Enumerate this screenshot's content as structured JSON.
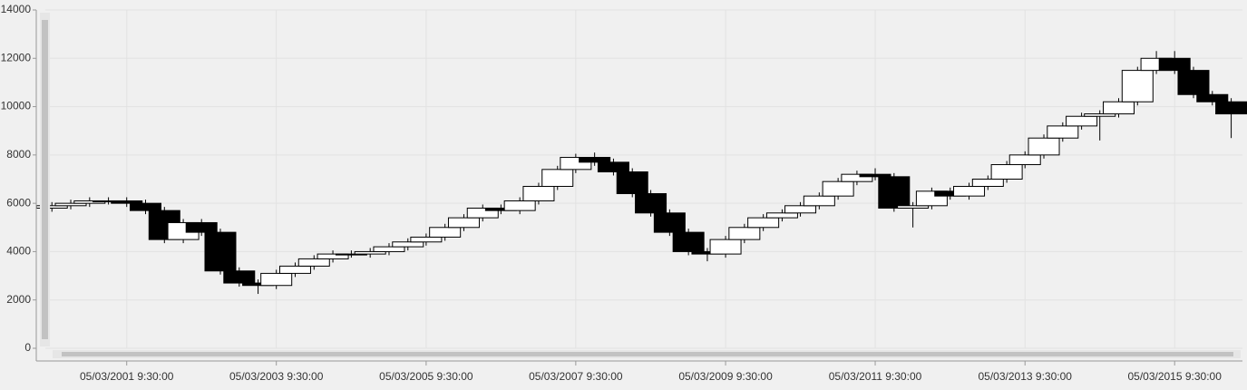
{
  "chart_data": {
    "type": "candlestick",
    "x": [
      "05/03/2000 9:30:00",
      "08/03/2000 9:30:00",
      "11/03/2000 9:30:00",
      "02/03/2001 9:30:00",
      "05/03/2001 9:30:00",
      "08/03/2001 9:30:00",
      "11/03/2001 9:30:00",
      "02/03/2002 9:30:00",
      "05/03/2002 9:30:00",
      "08/03/2002 9:30:00",
      "11/03/2002 9:30:00",
      "02/03/2003 9:30:00",
      "05/03/2003 9:30:00",
      "08/03/2003 9:30:00",
      "11/03/2003 9:30:00",
      "02/03/2004 9:30:00",
      "05/03/2004 9:30:00",
      "08/03/2004 9:30:00",
      "11/03/2004 9:30:00",
      "02/03/2005 9:30:00",
      "05/03/2005 9:30:00",
      "08/03/2005 9:30:00",
      "11/03/2005 9:30:00",
      "02/03/2006 9:30:00",
      "05/03/2006 9:30:00",
      "08/03/2006 9:30:00",
      "11/03/2006 9:30:00",
      "02/03/2007 9:30:00",
      "05/03/2007 9:30:00",
      "08/03/2007 9:30:00",
      "11/03/2007 9:30:00",
      "02/03/2008 9:30:00",
      "05/03/2008 9:30:00",
      "08/03/2008 9:30:00",
      "11/03/2008 9:30:00",
      "02/03/2009 9:30:00",
      "05/03/2009 9:30:00",
      "08/03/2009 9:30:00",
      "11/03/2009 9:30:00",
      "02/03/2010 9:30:00",
      "05/03/2010 9:30:00",
      "08/03/2010 9:30:00",
      "11/03/2010 9:30:00",
      "02/03/2011 9:30:00",
      "05/03/2011 9:30:00",
      "08/03/2011 9:30:00",
      "11/03/2011 9:30:00",
      "02/03/2012 9:30:00",
      "05/03/2012 9:30:00",
      "08/03/2012 9:30:00",
      "11/03/2012 9:30:00",
      "02/03/2013 9:30:00",
      "05/03/2013 9:30:00",
      "08/03/2013 9:30:00",
      "11/03/2013 9:30:00",
      "02/03/2014 9:30:00",
      "05/03/2014 9:30:00",
      "08/03/2014 9:30:00",
      "11/03/2014 9:30:00",
      "02/03/2015 9:30:00",
      "05/03/2015 9:30:00",
      "08/03/2015 9:30:00",
      "11/03/2015 9:30:00",
      "02/03/2016 9:30:00"
    ],
    "open": [
      5800,
      5900,
      6000,
      6100,
      6100,
      6000,
      5700,
      4500,
      5200,
      4800,
      3200,
      2700,
      2600,
      3100,
      3400,
      3700,
      3900,
      3900,
      4000,
      4200,
      4400,
      4600,
      5000,
      5400,
      5800,
      5700,
      6100,
      6700,
      7400,
      7900,
      7700,
      7300,
      6400,
      5600,
      4800,
      4000,
      3900,
      4500,
      5000,
      5400,
      5600,
      5900,
      6300,
      6900,
      7200,
      7100,
      5800,
      5900,
      6500,
      6300,
      6700,
      7000,
      7600,
      8000,
      8700,
      9200,
      9600,
      9700,
      10200,
      11500,
      12000,
      11500,
      10500,
      10200
    ],
    "high": [
      6050,
      6150,
      6250,
      6250,
      6250,
      6150,
      5850,
      5350,
      5350,
      4950,
      3350,
      2850,
      3250,
      3550,
      3850,
      4050,
      4050,
      4150,
      4350,
      4550,
      4750,
      5150,
      5550,
      5950,
      5950,
      6250,
      6850,
      7550,
      8050,
      8100,
      7850,
      7450,
      6550,
      5750,
      4950,
      4150,
      4650,
      5150,
      5550,
      5750,
      6050,
      6450,
      7050,
      7350,
      7450,
      7250,
      6050,
      6650,
      6650,
      6850,
      7150,
      7750,
      8150,
      8850,
      9350,
      9750,
      9850,
      10350,
      11650,
      12300,
      12300,
      11650,
      10650,
      10350
    ],
    "low": [
      5650,
      5750,
      5850,
      5950,
      5850,
      5550,
      4350,
      4350,
      4650,
      3050,
      2550,
      2250,
      2450,
      2950,
      3250,
      3550,
      3750,
      3750,
      3850,
      4050,
      4250,
      4450,
      4850,
      5250,
      5550,
      5550,
      5950,
      6550,
      7250,
      7550,
      7150,
      6250,
      5450,
      4650,
      3850,
      3600,
      3750,
      4350,
      4850,
      5250,
      5450,
      5750,
      6150,
      6750,
      6950,
      5650,
      5000,
      5750,
      6150,
      6150,
      6550,
      6850,
      7450,
      7850,
      8550,
      9050,
      8600,
      9550,
      10050,
      11350,
      11350,
      10350,
      10050,
      8700
    ],
    "close": [
      5900,
      6000,
      6100,
      6100,
      6000,
      5700,
      4500,
      5200,
      4800,
      3200,
      2700,
      2600,
      3100,
      3400,
      3700,
      3900,
      3900,
      4000,
      4200,
      4400,
      4600,
      5000,
      5400,
      5800,
      5700,
      6100,
      6700,
      7400,
      7900,
      7700,
      7300,
      6400,
      5600,
      4800,
      4000,
      3900,
      4500,
      5000,
      5400,
      5600,
      5900,
      6300,
      6900,
      7200,
      7100,
      5800,
      5900,
      6500,
      6300,
      6700,
      7000,
      7600,
      8000,
      8700,
      9200,
      9600,
      9700,
      10200,
      11500,
      12000,
      11500,
      10500,
      10200,
      9700
    ],
    "xlim": [
      "04/01/2000 9:30:00",
      "03/29/2016 9:30:00"
    ],
    "xticks": [
      "05/03/2001 9:30:00",
      "05/03/2003 9:30:00",
      "05/03/2005 9:30:00",
      "05/03/2007 9:30:00",
      "05/03/2009 9:30:00",
      "05/03/2011 9:30:00",
      "05/03/2013 9:30:00",
      "05/03/2015 9:30:00"
    ],
    "ylim": [
      0,
      14000
    ],
    "yticks": [
      0,
      2000,
      4000,
      6000,
      8000,
      10000,
      12000,
      14000
    ],
    "grid": true
  }
}
